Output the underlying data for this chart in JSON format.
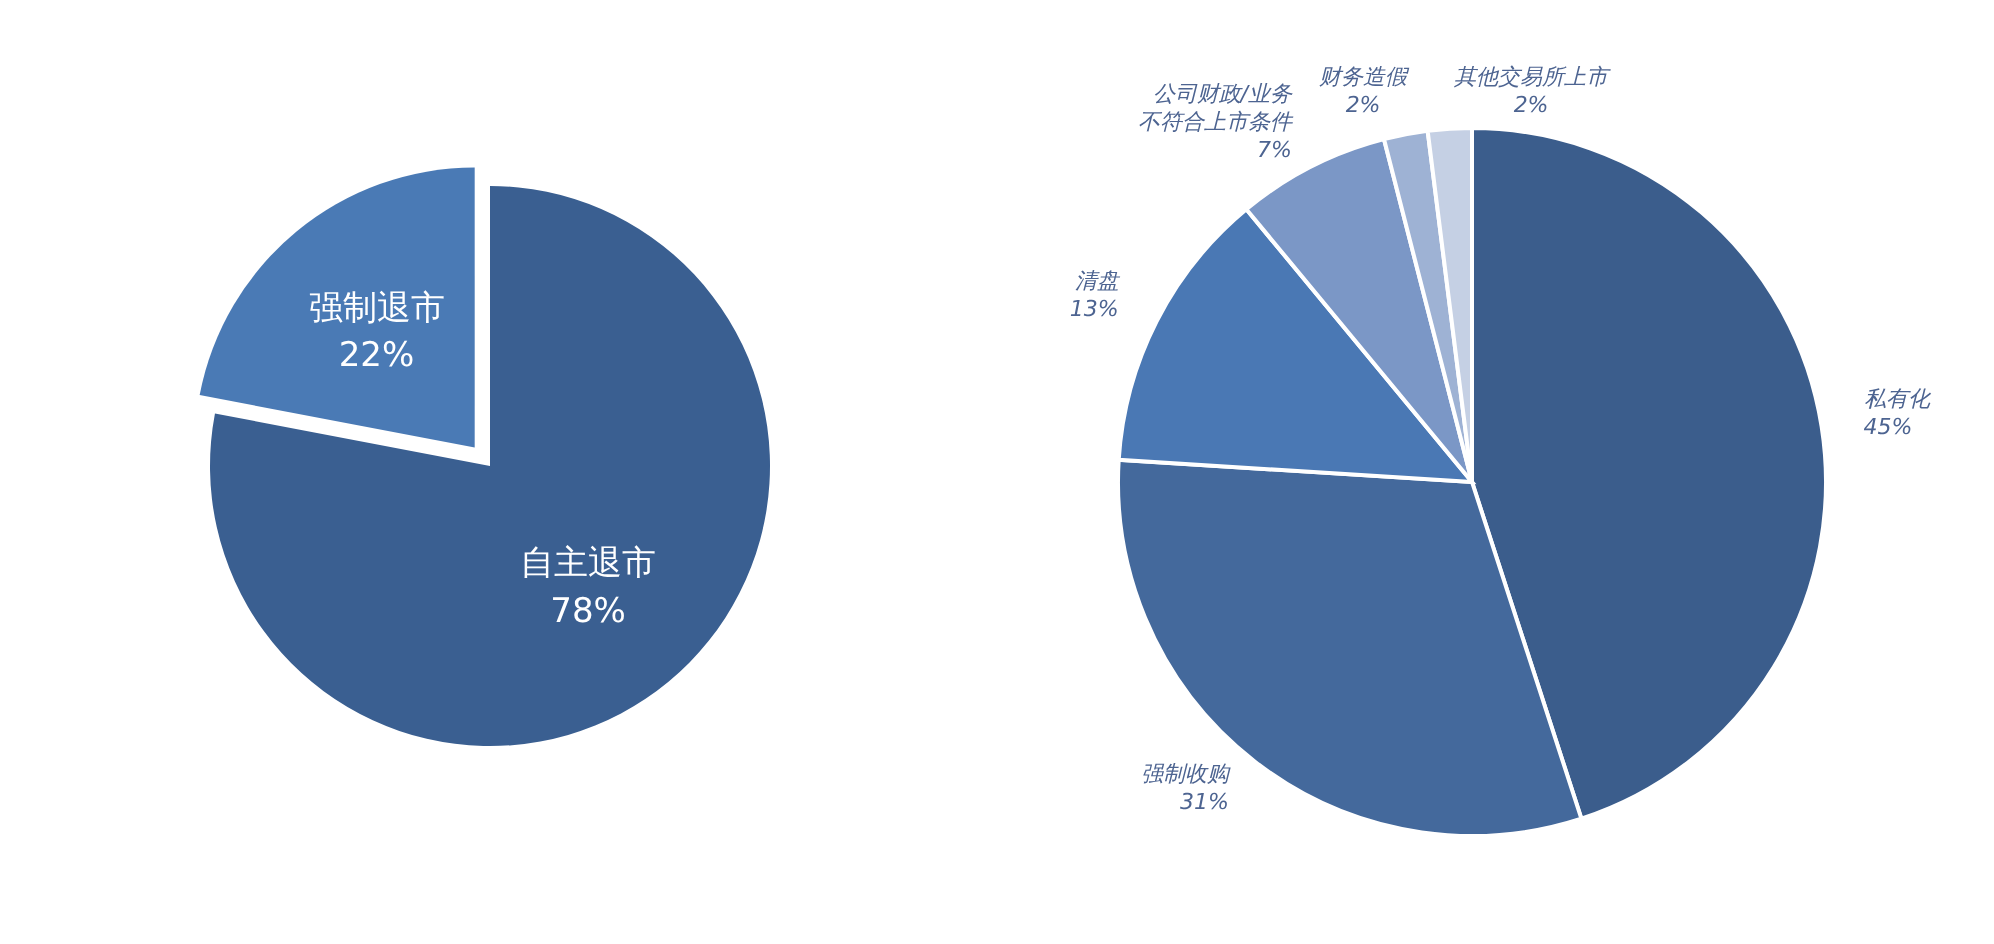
{
  "chart_data": [
    {
      "type": "pie",
      "categories": [
        "自主退市",
        "强制退市"
      ],
      "values": [
        78,
        22
      ],
      "value_labels": [
        "78%",
        "22%"
      ],
      "colors": [
        "#3a5f91",
        "#4a7ab5"
      ]
    },
    {
      "type": "pie",
      "categories": [
        "私有化",
        "强制收购",
        "清盘",
        "公司财政/业务不符合上市条件",
        "财务造假",
        "其他交易所上市"
      ],
      "values": [
        45,
        31,
        13,
        7,
        2,
        2
      ],
      "value_labels": [
        "45%",
        "31%",
        "13%",
        "7%",
        "2%",
        "2%"
      ],
      "colors": [
        "#3b5d8c",
        "#44699c",
        "#4a78b4",
        "#7b97c6",
        "#9eb2d4",
        "#c5d0e4"
      ]
    }
  ]
}
